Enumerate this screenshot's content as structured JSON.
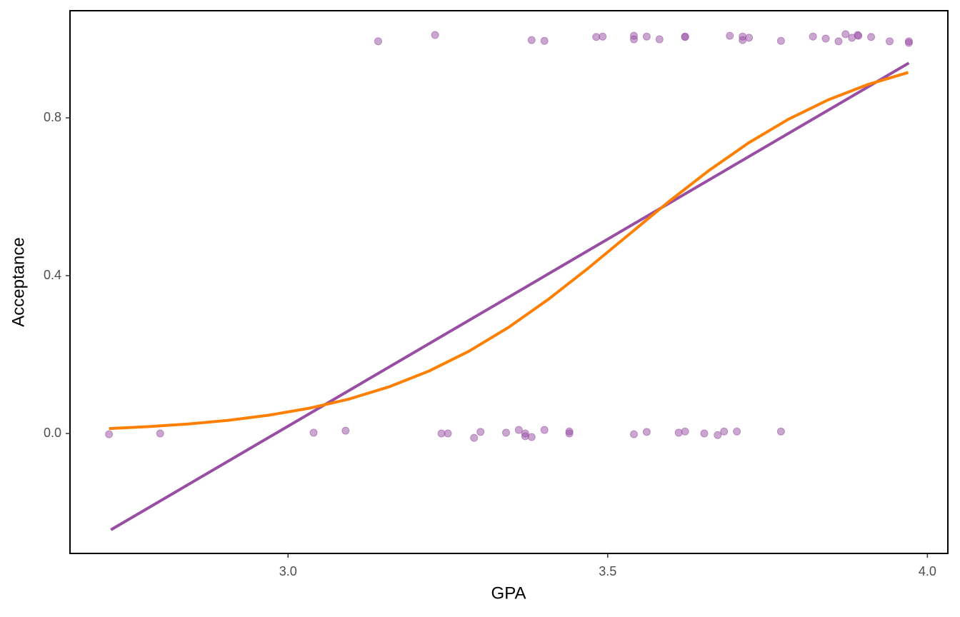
{
  "chart_data": {
    "type": "scatter",
    "x_label": "GPA",
    "y_label": "Acceptance",
    "xlim": [
      2.659,
      4.032
    ],
    "ylim": [
      -0.304,
      1.0715
    ],
    "xticks": [
      {
        "value": 3.0,
        "label": "3.0"
      },
      {
        "value": 3.5,
        "label": "3.5"
      },
      {
        "value": 4.0,
        "label": "4.0"
      }
    ],
    "yticks": [
      {
        "value": 0.0,
        "label": "0.0"
      },
      0.4,
      0.8
    ],
    "grid": false,
    "series": [
      {
        "mode": "points",
        "color": "#984ea3",
        "x": [
          3.141,
          3.23,
          3.381,
          3.401,
          3.482,
          3.492,
          3.541,
          3.541,
          3.561,
          3.581,
          3.621,
          3.621,
          3.691,
          3.711,
          3.711,
          3.721,
          3.771,
          3.821,
          3.841,
          3.861,
          3.872,
          3.882,
          3.891,
          3.892,
          3.912,
          3.941,
          3.971,
          3.971,
          2.72,
          2.8,
          3.04,
          3.09,
          3.24,
          3.25,
          3.291,
          3.301,
          3.341,
          3.361,
          3.371,
          3.371,
          3.381,
          3.401,
          3.44,
          3.44,
          3.541,
          3.561,
          3.611,
          3.621,
          3.651,
          3.672,
          3.682,
          3.702,
          3.771
        ],
        "values": [
          0.994,
          1.01,
          0.997,
          0.995,
          1.005,
          1.006,
          1.008,
          0.999,
          1.006,
          0.999,
          1.006,
          1.005,
          1.008,
          1.006,
          0.997,
          1.003,
          0.995,
          1.006,
          1.001,
          0.994,
          1.012,
          1.003,
          1.01,
          1.008,
          1.005,
          0.994,
          0.994,
          0.99,
          -0.002,
          0.0,
          0.002,
          0.007,
          0.0,
          0.0,
          -0.011,
          0.004,
          0.002,
          0.009,
          0.0,
          -0.007,
          -0.009,
          0.009,
          0.005,
          0.0,
          -0.002,
          0.004,
          0.002,
          0.005,
          0.0,
          -0.004,
          0.005,
          0.005,
          0.005
        ]
      },
      {
        "mode": "line",
        "color": "#984ea3",
        "x": [
          2.723,
          3.971
        ],
        "values": [
          -0.244,
          0.939
        ]
      },
      {
        "mode": "line",
        "color": "#ff7f00",
        "x": [
          2.72,
          2.7825,
          2.845,
          2.9075,
          2.97,
          3.0325,
          3.095,
          3.1575,
          3.22,
          3.2825,
          3.345,
          3.4075,
          3.47,
          3.5325,
          3.595,
          3.6575,
          3.72,
          3.7825,
          3.845,
          3.9075,
          3.97
        ],
        "values": [
          0.0124,
          0.0174,
          0.0242,
          0.0335,
          0.0464,
          0.0638,
          0.0871,
          0.118,
          0.1579,
          0.2081,
          0.2691,
          0.3404,
          0.4197,
          0.5034,
          0.5869,
          0.6656,
          0.7362,
          0.7963,
          0.8457,
          0.8848,
          0.915
        ]
      }
    ]
  }
}
